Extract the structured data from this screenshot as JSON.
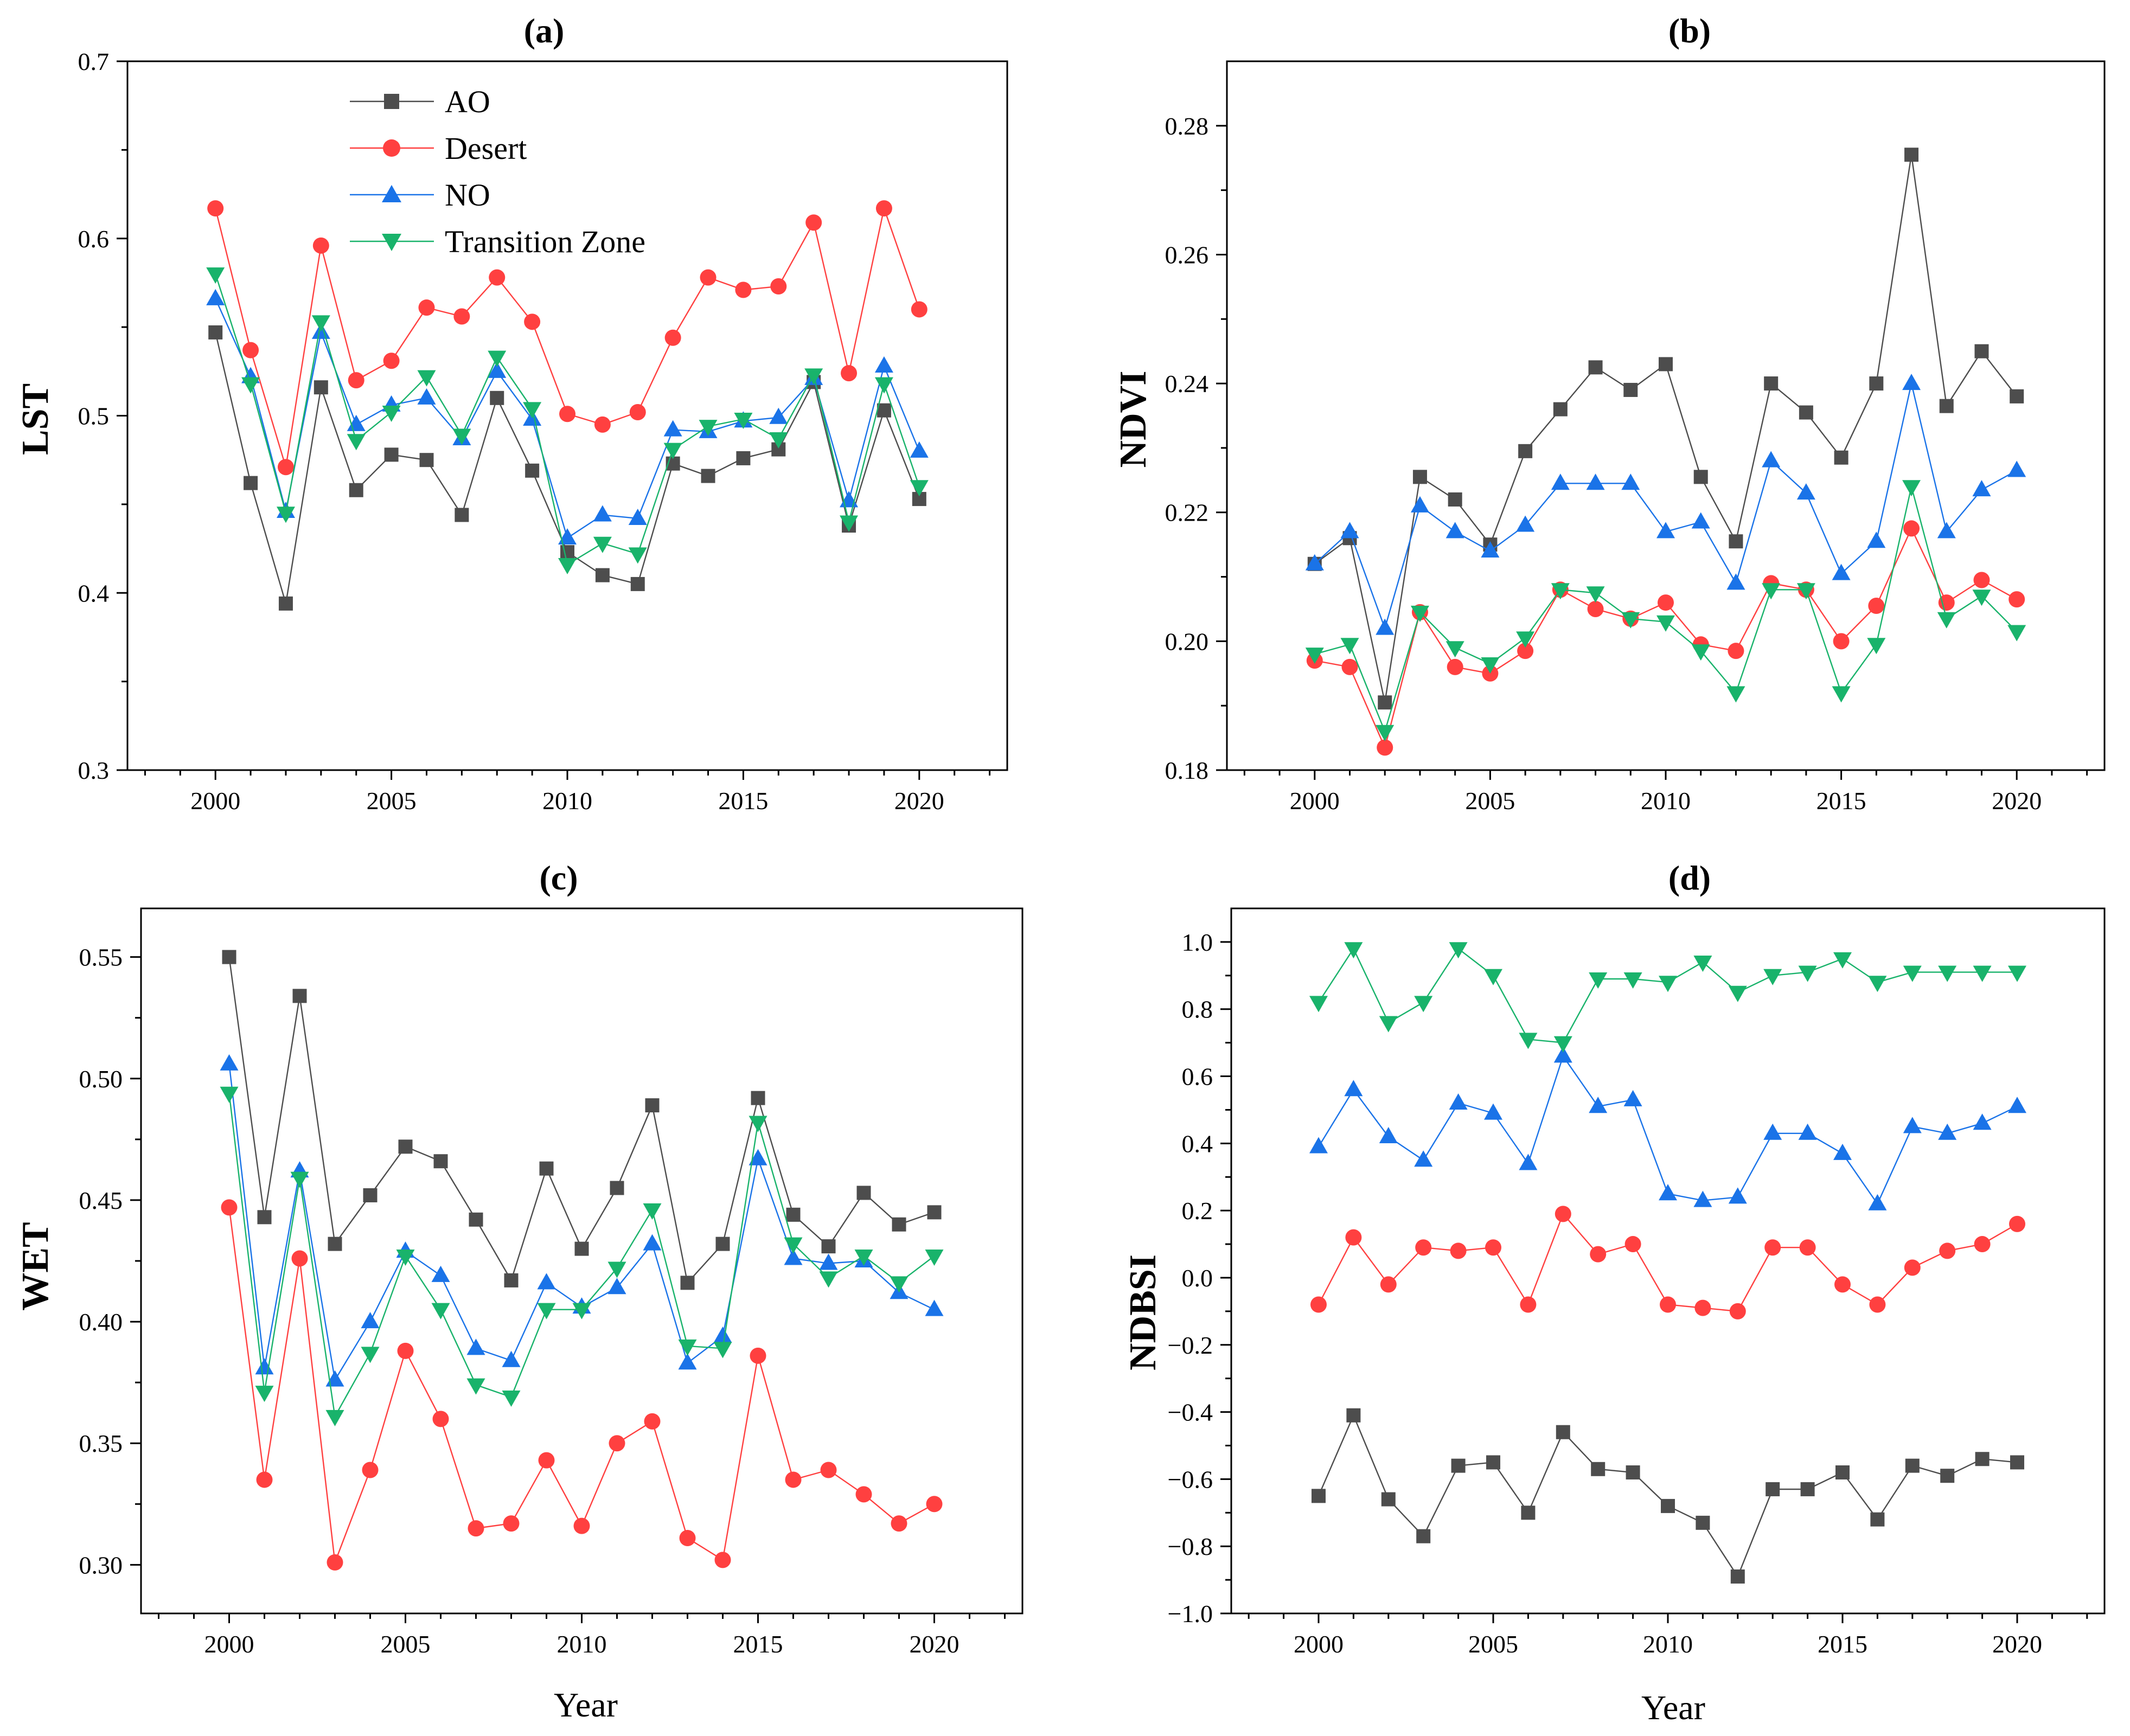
{
  "colors": {
    "AO": "#4d4d4d",
    "Desert": "#ff4040",
    "NO": "#1a73e8",
    "Transition Zone": "#19b36b"
  },
  "legend": {
    "entries": [
      "AO",
      "Desert",
      "NO",
      "Transition Zone"
    ]
  },
  "chart_data": [
    {
      "id": "a",
      "type": "line",
      "title": "(a)",
      "xlabel": "",
      "ylabel": "LST",
      "xlim": [
        1997.5,
        2022.5
      ],
      "ylim": [
        0.3,
        0.7
      ],
      "xticks": [
        2000,
        2005,
        2010,
        2015,
        2020
      ],
      "yticks": [
        0.3,
        0.4,
        0.5,
        0.6,
        0.7
      ],
      "ytick_labels": [
        "0.3",
        "0.4",
        "0.5",
        "0.6",
        "0.7"
      ],
      "x": [
        2000,
        2001,
        2002,
        2003,
        2004,
        2005,
        2006,
        2007,
        2008,
        2009,
        2010,
        2011,
        2012,
        2013,
        2014,
        2015,
        2016,
        2017,
        2018,
        2019,
        2020
      ],
      "series": [
        {
          "name": "AO",
          "marker": "square",
          "values": [
            0.547,
            0.462,
            0.394,
            0.516,
            0.458,
            0.478,
            0.475,
            0.444,
            0.51,
            0.469,
            0.423,
            0.41,
            0.405,
            0.473,
            0.466,
            0.476,
            0.481,
            0.519,
            0.438,
            0.503,
            0.453
          ]
        },
        {
          "name": "Desert",
          "marker": "circle",
          "values": [
            0.617,
            0.537,
            0.471,
            0.596,
            0.52,
            0.531,
            0.561,
            0.556,
            0.578,
            0.553,
            0.501,
            0.495,
            0.502,
            0.544,
            0.578,
            0.571,
            0.573,
            0.609,
            0.524,
            0.617,
            0.56
          ]
        },
        {
          "name": "NO",
          "marker": "triangle-up",
          "values": [
            0.566,
            0.522,
            0.446,
            0.547,
            0.495,
            0.506,
            0.51,
            0.487,
            0.525,
            0.498,
            0.431,
            0.444,
            0.442,
            0.492,
            0.491,
            0.497,
            0.499,
            0.521,
            0.452,
            0.528,
            0.48
          ]
        },
        {
          "name": "Transition Zone",
          "marker": "triangle-down",
          "values": [
            0.58,
            0.518,
            0.445,
            0.553,
            0.486,
            0.502,
            0.522,
            0.489,
            0.533,
            0.504,
            0.416,
            0.428,
            0.422,
            0.481,
            0.494,
            0.498,
            0.487,
            0.523,
            0.44,
            0.518,
            0.46
          ]
        }
      ]
    },
    {
      "id": "b",
      "type": "line",
      "title": "(b)",
      "xlabel": "",
      "ylabel": "NDVI",
      "xlim": [
        1997.5,
        2022.5
      ],
      "ylim": [
        0.18,
        0.29
      ],
      "xticks": [
        2000,
        2005,
        2010,
        2015,
        2020
      ],
      "yticks": [
        0.18,
        0.2,
        0.22,
        0.24,
        0.26,
        0.28
      ],
      "ytick_labels": [
        "0.18",
        "0.20",
        "0.22",
        "0.24",
        "0.26",
        "0.28"
      ],
      "x": [
        2000,
        2001,
        2002,
        2003,
        2004,
        2005,
        2006,
        2007,
        2008,
        2009,
        2010,
        2011,
        2012,
        2013,
        2014,
        2015,
        2016,
        2017,
        2018,
        2019,
        2020
      ],
      "series": [
        {
          "name": "AO",
          "marker": "square",
          "values": [
            0.212,
            0.216,
            0.1905,
            0.2255,
            0.222,
            0.215,
            0.2295,
            0.236,
            0.2425,
            0.239,
            0.243,
            0.2255,
            0.2155,
            0.24,
            0.2355,
            0.2285,
            0.24,
            0.2755,
            0.2365,
            0.245,
            0.238
          ]
        },
        {
          "name": "Desert",
          "marker": "circle",
          "values": [
            0.197,
            0.196,
            0.1835,
            0.2045,
            0.196,
            0.195,
            0.1985,
            0.208,
            0.205,
            0.2035,
            0.206,
            0.1995,
            0.1985,
            0.209,
            0.208,
            0.2,
            0.2055,
            0.2175,
            0.206,
            0.2095,
            0.2065
          ]
        },
        {
          "name": "NO",
          "marker": "triangle-up",
          "values": [
            0.212,
            0.217,
            0.202,
            0.221,
            0.217,
            0.214,
            0.218,
            0.2245,
            0.2245,
            0.2245,
            0.217,
            0.2185,
            0.209,
            0.228,
            0.223,
            0.2105,
            0.2155,
            0.24,
            0.217,
            0.2235,
            0.2265
          ]
        },
        {
          "name": "Transition Zone",
          "marker": "triangle-down",
          "values": [
            0.198,
            0.1995,
            0.186,
            0.2045,
            0.199,
            0.1965,
            0.2005,
            0.208,
            0.2075,
            0.2035,
            0.203,
            0.1985,
            0.192,
            0.208,
            0.208,
            0.192,
            0.1995,
            0.224,
            0.2035,
            0.207,
            0.2015
          ]
        }
      ]
    },
    {
      "id": "c",
      "type": "line",
      "title": "(c)",
      "xlabel": "Year",
      "ylabel": "WET",
      "xlim": [
        1997.5,
        2022.5
      ],
      "ylim": [
        0.28,
        0.57
      ],
      "xticks": [
        2000,
        2005,
        2010,
        2015,
        2020
      ],
      "yticks": [
        0.3,
        0.35,
        0.4,
        0.45,
        0.5,
        0.55
      ],
      "ytick_labels": [
        "0.30",
        "0.35",
        "0.40",
        "0.45",
        "0.50",
        "0.55"
      ],
      "x": [
        2000,
        2001,
        2002,
        2003,
        2004,
        2005,
        2006,
        2007,
        2008,
        2009,
        2010,
        2011,
        2012,
        2013,
        2014,
        2015,
        2016,
        2017,
        2018,
        2019,
        2020
      ],
      "series": [
        {
          "name": "AO",
          "marker": "square",
          "values": [
            0.55,
            0.443,
            0.534,
            0.432,
            0.452,
            0.472,
            0.466,
            0.442,
            0.417,
            0.463,
            0.43,
            0.455,
            0.489,
            0.416,
            0.432,
            0.492,
            0.444,
            0.431,
            0.453,
            0.44,
            0.445
          ]
        },
        {
          "name": "Desert",
          "marker": "circle",
          "values": [
            0.447,
            0.335,
            0.426,
            0.301,
            0.339,
            0.388,
            0.36,
            0.315,
            0.317,
            0.343,
            0.316,
            0.35,
            0.359,
            0.311,
            0.302,
            0.386,
            0.335,
            0.339,
            0.329,
            0.317,
            0.325
          ]
        },
        {
          "name": "NO",
          "marker": "triangle-up",
          "values": [
            0.506,
            0.381,
            0.462,
            0.376,
            0.4,
            0.429,
            0.419,
            0.389,
            0.384,
            0.416,
            0.406,
            0.414,
            0.432,
            0.383,
            0.394,
            0.467,
            0.426,
            0.424,
            0.425,
            0.412,
            0.405
          ]
        },
        {
          "name": "Transition Zone",
          "marker": "triangle-down",
          "values": [
            0.494,
            0.371,
            0.459,
            0.361,
            0.387,
            0.427,
            0.405,
            0.374,
            0.369,
            0.405,
            0.405,
            0.422,
            0.446,
            0.39,
            0.389,
            0.482,
            0.432,
            0.418,
            0.427,
            0.416,
            0.427
          ]
        }
      ]
    },
    {
      "id": "d",
      "type": "line",
      "title": "(d)",
      "xlabel": "Year",
      "ylabel": "NDBSI",
      "xlim": [
        1997.5,
        2022.5
      ],
      "ylim": [
        -1.0,
        1.1
      ],
      "xticks": [
        2000,
        2005,
        2010,
        2015,
        2020
      ],
      "yticks": [
        -1.0,
        -0.8,
        -0.6,
        -0.4,
        -0.2,
        0.0,
        0.2,
        0.4,
        0.6,
        0.8,
        1.0
      ],
      "ytick_labels": [
        "−1.0",
        "−0.8",
        "−0.6",
        "−0.4",
        "−0.2",
        "0.0",
        "0.2",
        "0.4",
        "0.6",
        "0.8",
        "1.0"
      ],
      "x": [
        2000,
        2001,
        2002,
        2003,
        2004,
        2005,
        2006,
        2007,
        2008,
        2009,
        2010,
        2011,
        2012,
        2013,
        2014,
        2015,
        2016,
        2017,
        2018,
        2019,
        2020
      ],
      "series": [
        {
          "name": "AO",
          "marker": "square",
          "values": [
            -0.65,
            -0.41,
            -0.66,
            -0.77,
            -0.56,
            -0.55,
            -0.7,
            -0.46,
            -0.57,
            -0.58,
            -0.68,
            -0.73,
            -0.89,
            -0.63,
            -0.63,
            -0.58,
            -0.72,
            -0.56,
            -0.59,
            -0.54,
            -0.55
          ]
        },
        {
          "name": "Desert",
          "marker": "circle",
          "values": [
            -0.08,
            0.12,
            -0.02,
            0.09,
            0.08,
            0.09,
            -0.08,
            0.19,
            0.07,
            0.1,
            -0.08,
            -0.09,
            -0.1,
            0.09,
            0.09,
            -0.02,
            -0.08,
            0.03,
            0.08,
            0.1,
            0.16
          ]
        },
        {
          "name": "NO",
          "marker": "triangle-up",
          "values": [
            0.39,
            0.56,
            0.42,
            0.35,
            0.52,
            0.49,
            0.34,
            0.66,
            0.51,
            0.53,
            0.25,
            0.23,
            0.24,
            0.43,
            0.43,
            0.37,
            0.22,
            0.45,
            0.43,
            0.46,
            0.51
          ]
        },
        {
          "name": "Transition Zone",
          "marker": "triangle-down",
          "values": [
            0.82,
            0.98,
            0.76,
            0.82,
            0.98,
            0.9,
            0.71,
            0.7,
            0.89,
            0.89,
            0.88,
            0.94,
            0.85,
            0.9,
            0.91,
            0.95,
            0.88,
            0.91,
            0.91,
            0.91,
            0.91
          ]
        }
      ]
    }
  ]
}
